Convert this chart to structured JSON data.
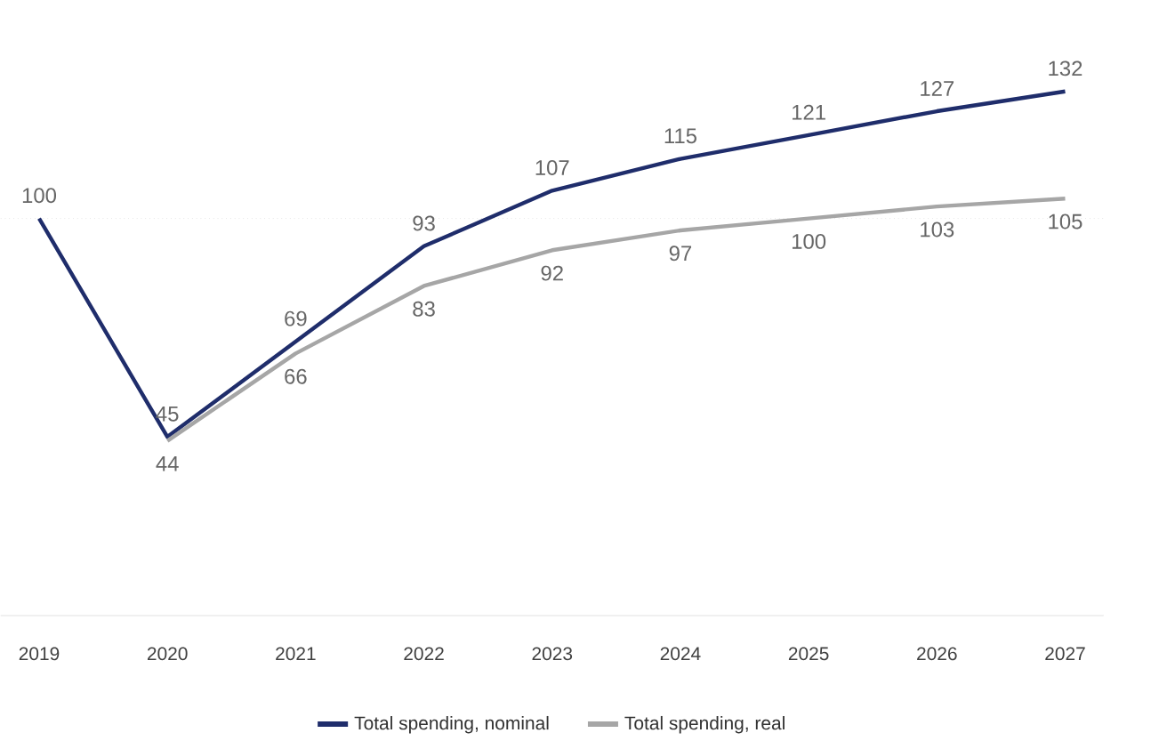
{
  "chart_data": {
    "type": "line",
    "categories": [
      "2019",
      "2020",
      "2021",
      "2022",
      "2023",
      "2024",
      "2025",
      "2026",
      "2027"
    ],
    "series": [
      {
        "name": "Total spending, nominal",
        "color": "#1f2d6b",
        "values": [
          100,
          45,
          69,
          93,
          107,
          115,
          121,
          127,
          132
        ]
      },
      {
        "name": "Total spending, real",
        "color": "#a6a6a6",
        "values": [
          null,
          44,
          66,
          83,
          92,
          97,
          100,
          103,
          105
        ]
      }
    ],
    "data_labels": true,
    "legend": "bottom",
    "marker": "none",
    "line_style": "solid",
    "grid": false,
    "ref_lines": [
      {
        "axis": "y",
        "value": 100,
        "color": "#d9d9d9",
        "line_style": "dotted"
      }
    ]
  }
}
